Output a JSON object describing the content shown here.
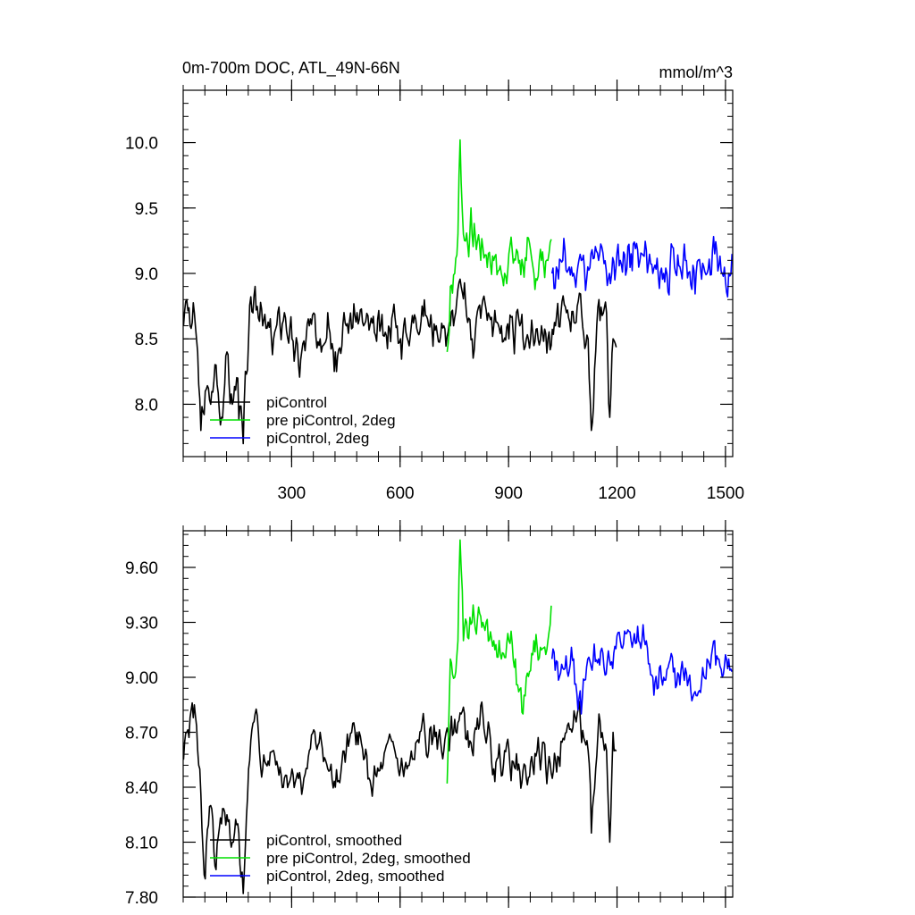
{
  "chart_data": [
    {
      "type": "line",
      "title": "0m-700m DOC, ATL_49N-66N",
      "units": "mmol/m^3",
      "xlim": [
        0,
        1520
      ],
      "ylim": [
        7.6,
        10.4
      ],
      "xticks": [
        300,
        600,
        900,
        1200,
        1500
      ],
      "xtick_labels": [
        "300",
        "600",
        "900",
        "1200",
        "1500"
      ],
      "yticks": [
        8.0,
        8.5,
        9.0,
        9.5,
        10.0
      ],
      "ytick_labels": [
        "8.0",
        "8.5",
        "9.0",
        "9.5",
        "10.0"
      ],
      "show_xtick_labels": true,
      "grid": false,
      "legend_position": "bottom-left",
      "series": [
        {
          "name": "piControl",
          "color": "#000000",
          "anchors": [
            [
              1,
              8.6
            ],
            [
              10,
              8.8
            ],
            [
              20,
              8.6
            ],
            [
              30,
              8.7
            ],
            [
              40,
              8.4
            ],
            [
              50,
              7.8
            ],
            [
              60,
              8.1
            ],
            [
              75,
              8.0
            ],
            [
              90,
              8.3
            ],
            [
              105,
              7.9
            ],
            [
              120,
              8.4
            ],
            [
              135,
              8.0
            ],
            [
              150,
              8.2
            ],
            [
              165,
              7.7
            ],
            [
              180,
              8.5
            ],
            [
              200,
              8.9
            ],
            [
              220,
              8.6
            ],
            [
              250,
              8.5
            ],
            [
              280,
              8.7
            ],
            [
              300,
              8.5
            ],
            [
              320,
              8.3
            ],
            [
              350,
              8.6
            ],
            [
              380,
              8.5
            ],
            [
              400,
              8.7
            ],
            [
              420,
              8.4
            ],
            [
              450,
              8.6
            ],
            [
              480,
              8.7
            ],
            [
              500,
              8.6
            ],
            [
              530,
              8.55
            ],
            [
              560,
              8.55
            ],
            [
              580,
              8.7
            ],
            [
              600,
              8.5
            ],
            [
              630,
              8.6
            ],
            [
              660,
              8.75
            ],
            [
              680,
              8.6
            ],
            [
              700,
              8.6
            ],
            [
              720,
              8.6
            ],
            [
              740,
              8.6
            ],
            [
              770,
              8.9
            ],
            [
              800,
              8.5
            ],
            [
              830,
              8.8
            ],
            [
              860,
              8.6
            ],
            [
              880,
              8.6
            ],
            [
              900,
              8.5
            ],
            [
              930,
              8.6
            ],
            [
              960,
              8.5
            ],
            [
              990,
              8.6
            ],
            [
              1010,
              8.5
            ],
            [
              1030,
              8.6
            ],
            [
              1060,
              8.7
            ],
            [
              1090,
              8.75
            ],
            [
              1120,
              8.5
            ],
            [
              1130,
              7.8
            ],
            [
              1150,
              8.8
            ],
            [
              1170,
              8.7
            ],
            [
              1180,
              7.9
            ],
            [
              1190,
              8.5
            ],
            [
              1200,
              8.4
            ]
          ],
          "amp": 0.2,
          "seed": 3
        },
        {
          "name": "pre piControl, 2deg",
          "color": "#00e000",
          "anchors": [
            [
              730,
              8.4
            ],
            [
              740,
              8.9
            ],
            [
              750,
              9.0
            ],
            [
              760,
              9.3
            ],
            [
              766,
              10.02
            ],
            [
              775,
              9.3
            ],
            [
              800,
              9.3
            ],
            [
              830,
              9.2
            ],
            [
              860,
              9.1
            ],
            [
              880,
              9.0
            ],
            [
              900,
              9.15
            ],
            [
              930,
              9.1
            ],
            [
              950,
              9.1
            ],
            [
              970,
              9.0
            ],
            [
              990,
              9.1
            ],
            [
              1010,
              9.1
            ],
            [
              1020,
              9.2
            ]
          ],
          "amp": 0.22,
          "seed": 7
        },
        {
          "name": "piControl, 2deg",
          "color": "#0000ff",
          "anchors": [
            [
              1020,
              9.0
            ],
            [
              1050,
              9.1
            ],
            [
              1080,
              9.0
            ],
            [
              1100,
              9.1
            ],
            [
              1120,
              9.05
            ],
            [
              1150,
              9.1
            ],
            [
              1180,
              9.0
            ],
            [
              1210,
              9.1
            ],
            [
              1240,
              9.15
            ],
            [
              1270,
              9.15
            ],
            [
              1300,
              9.0
            ],
            [
              1330,
              9.0
            ],
            [
              1360,
              9.05
            ],
            [
              1390,
              9.1
            ],
            [
              1420,
              9.0
            ],
            [
              1450,
              9.0
            ],
            [
              1470,
              9.15
            ],
            [
              1490,
              9.0
            ],
            [
              1510,
              9.0
            ],
            [
              1520,
              9.1
            ]
          ],
          "amp": 0.22,
          "seed": 11
        }
      ]
    },
    {
      "type": "line",
      "title": "",
      "units": "",
      "xlim": [
        0,
        1520
      ],
      "ylim": [
        7.8,
        9.8
      ],
      "xticks": [
        300,
        600,
        900,
        1200,
        1500
      ],
      "xtick_labels": [],
      "yticks": [
        7.8,
        8.1,
        8.4,
        8.7,
        9.0,
        9.3,
        9.6
      ],
      "ytick_labels": [
        "7.80",
        "8.10",
        "8.40",
        "8.70",
        "9.00",
        "9.30",
        "9.60"
      ],
      "show_xtick_labels": false,
      "grid": false,
      "legend_position": "bottom-left",
      "series": [
        {
          "name": "piControl, smoothed",
          "color": "#000000",
          "anchors": [
            [
              1,
              8.55
            ],
            [
              10,
              8.7
            ],
            [
              20,
              8.78
            ],
            [
              30,
              8.85
            ],
            [
              45,
              8.5
            ],
            [
              60,
              7.9
            ],
            [
              75,
              8.3
            ],
            [
              90,
              7.95
            ],
            [
              105,
              8.2
            ],
            [
              120,
              8.25
            ],
            [
              135,
              8.1
            ],
            [
              150,
              8.2
            ],
            [
              165,
              7.82
            ],
            [
              180,
              8.5
            ],
            [
              200,
              8.8
            ],
            [
              220,
              8.5
            ],
            [
              250,
              8.6
            ],
            [
              280,
              8.45
            ],
            [
              300,
              8.5
            ],
            [
              330,
              8.4
            ],
            [
              350,
              8.6
            ],
            [
              380,
              8.7
            ],
            [
              400,
              8.5
            ],
            [
              420,
              8.4
            ],
            [
              450,
              8.6
            ],
            [
              480,
              8.7
            ],
            [
              500,
              8.55
            ],
            [
              520,
              8.4
            ],
            [
              550,
              8.5
            ],
            [
              580,
              8.65
            ],
            [
              600,
              8.5
            ],
            [
              620,
              8.5
            ],
            [
              640,
              8.55
            ],
            [
              660,
              8.75
            ],
            [
              680,
              8.6
            ],
            [
              700,
              8.7
            ],
            [
              720,
              8.6
            ],
            [
              740,
              8.7
            ],
            [
              770,
              8.8
            ],
            [
              800,
              8.6
            ],
            [
              830,
              8.8
            ],
            [
              860,
              8.5
            ],
            [
              890,
              8.6
            ],
            [
              920,
              8.5
            ],
            [
              950,
              8.45
            ],
            [
              980,
              8.6
            ],
            [
              1010,
              8.5
            ],
            [
              1030,
              8.55
            ],
            [
              1060,
              8.7
            ],
            [
              1090,
              8.8
            ],
            [
              1120,
              8.6
            ],
            [
              1130,
              8.15
            ],
            [
              1150,
              8.8
            ],
            [
              1170,
              8.6
            ],
            [
              1180,
              8.1
            ],
            [
              1190,
              8.7
            ],
            [
              1200,
              8.5
            ]
          ],
          "amp": 0.12,
          "seed": 5
        },
        {
          "name": "pre piControl, 2deg, smoothed",
          "color": "#00e000",
          "anchors": [
            [
              730,
              8.42
            ],
            [
              740,
              9.1
            ],
            [
              750,
              9.0
            ],
            [
              760,
              9.2
            ],
            [
              766,
              9.75
            ],
            [
              775,
              9.2
            ],
            [
              800,
              9.3
            ],
            [
              830,
              9.3
            ],
            [
              860,
              9.2
            ],
            [
              880,
              9.1
            ],
            [
              900,
              9.2
            ],
            [
              920,
              9.1
            ],
            [
              940,
              8.8
            ],
            [
              950,
              9.0
            ],
            [
              970,
              9.2
            ],
            [
              990,
              9.15
            ],
            [
              1010,
              9.2
            ],
            [
              1020,
              9.4
            ]
          ],
          "amp": 0.12,
          "seed": 9
        },
        {
          "name": "piControl, 2deg, smoothed",
          "color": "#0000ff",
          "anchors": [
            [
              1020,
              9.1
            ],
            [
              1050,
              9.05
            ],
            [
              1080,
              9.1
            ],
            [
              1100,
              8.8
            ],
            [
              1120,
              9.1
            ],
            [
              1150,
              9.1
            ],
            [
              1180,
              9.1
            ],
            [
              1210,
              9.2
            ],
            [
              1240,
              9.2
            ],
            [
              1270,
              9.2
            ],
            [
              1300,
              9.0
            ],
            [
              1330,
              9.0
            ],
            [
              1360,
              9.05
            ],
            [
              1390,
              9.05
            ],
            [
              1420,
              8.9
            ],
            [
              1450,
              9.1
            ],
            [
              1470,
              9.2
            ],
            [
              1490,
              9.0
            ],
            [
              1510,
              9.1
            ],
            [
              1520,
              9.0
            ]
          ],
          "amp": 0.12,
          "seed": 13
        }
      ]
    }
  ]
}
